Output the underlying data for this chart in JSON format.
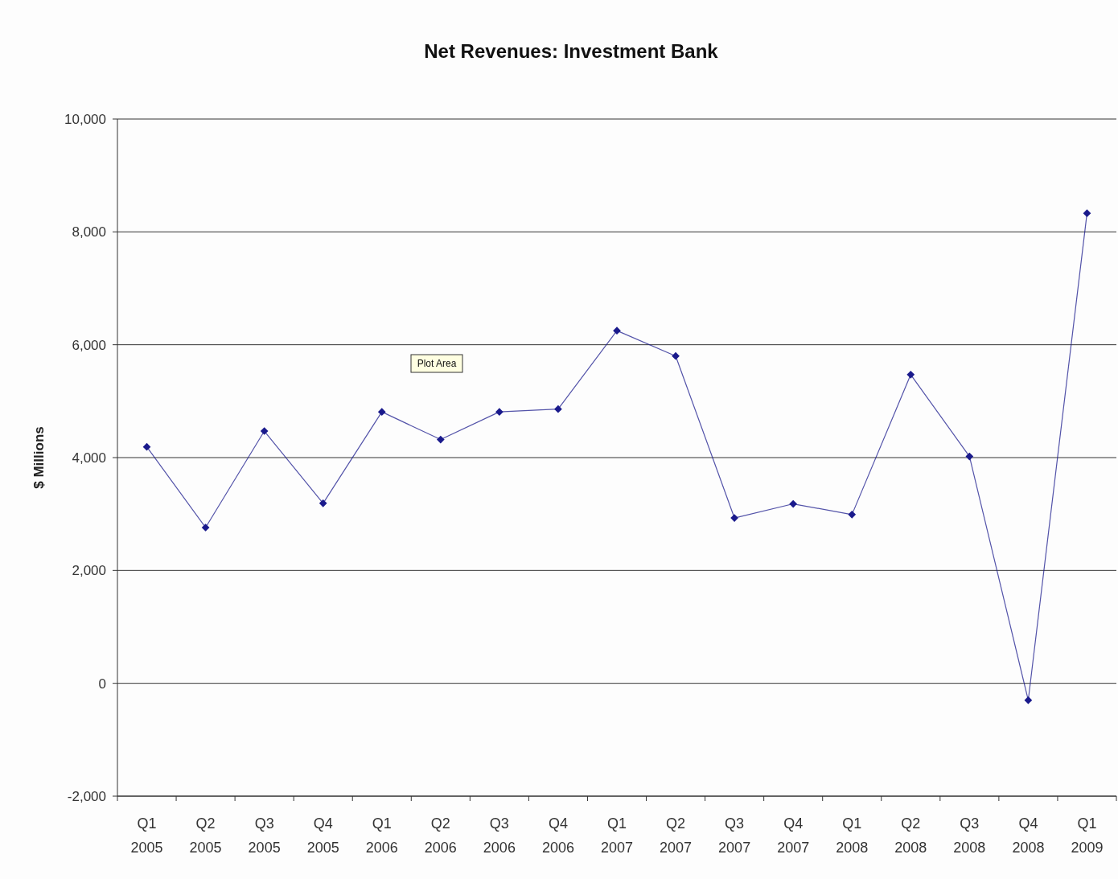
{
  "chart_data": {
    "type": "line",
    "title": "Net Revenues: Investment Bank",
    "ylabel": "$ Millions",
    "categories": [
      "Q1 2005",
      "Q2 2005",
      "Q3 2005",
      "Q4 2005",
      "Q1 2006",
      "Q2 2006",
      "Q3 2006",
      "Q4 2006",
      "Q1 2007",
      "Q2 2007",
      "Q3 2007",
      "Q4 2007",
      "Q1 2008",
      "Q2 2008",
      "Q3 2008",
      "Q4 2008",
      "Q1 2009"
    ],
    "series": [
      {
        "color": "#1a1a8c",
        "values": [
          4190,
          2760,
          4470,
          3190,
          4810,
          4320,
          4810,
          4860,
          6250,
          5800,
          2930,
          3180,
          2990,
          5470,
          4020,
          -300,
          8330
        ]
      }
    ],
    "ylim": [
      -2000,
      10000
    ],
    "yticks": [
      {
        "value": -2000,
        "label": "-2,000"
      },
      0,
      {
        "value": 2000,
        "label": "2,000"
      },
      {
        "value": 4000,
        "label": "4,000"
      },
      {
        "value": 6000,
        "label": "6,000"
      },
      {
        "value": 8000,
        "label": "8,000"
      },
      {
        "value": 10000,
        "label": "10,000"
      }
    ],
    "grid": "y",
    "marker": "diamond",
    "line_style": "solid",
    "annotations": [
      "Plot Area"
    ]
  }
}
